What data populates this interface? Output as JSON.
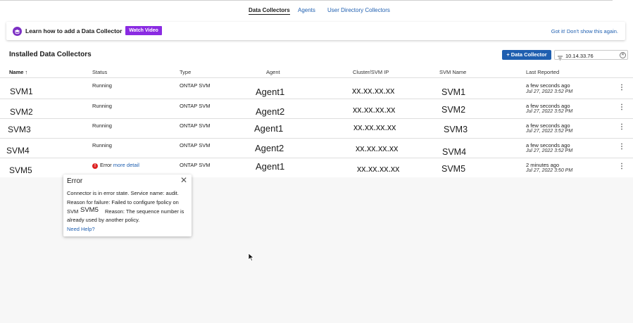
{
  "tabs": [
    "Data Collectors",
    "Agents",
    "User Directory Collectors"
  ],
  "banner": {
    "text": "Learn how to add a Data Collector",
    "watch_label": "Watch Video",
    "dismiss_label": "Got it! Don't show this again."
  },
  "section": {
    "title": "Installed Data Collectors",
    "add_label": "+ Data Collector",
    "filter_value": "10.14.33.76"
  },
  "columns": {
    "name": "Name",
    "sort_indicator": "↑",
    "status": "Status",
    "type": "Type",
    "agent": "Agent",
    "ip": "Cluster/SVM IP",
    "svm": "SVM Name",
    "reported": "Last Reported"
  },
  "rows": [
    {
      "name": "SVM1",
      "status": "Running",
      "type": "ONTAP SVM",
      "agent": "Agent1",
      "ip": "xx.xx.xx.xx",
      "svm": "SVM1",
      "reported": "a few seconds ago",
      "reported_date": "Jul 27, 2022 3:52 PM"
    },
    {
      "name": "SVM2",
      "status": "Running",
      "type": "ONTAP SVM",
      "agent": "Agent2",
      "ip": "xx.xx.xx.xx",
      "svm": "SVM2",
      "reported": "a few seconds ago",
      "reported_date": "Jul 27, 2022 3:52 PM"
    },
    {
      "name": "SVM3",
      "status": "Running",
      "type": "ONTAP SVM",
      "agent": "Agent1",
      "ip": "xx.xx.xx.xx",
      "svm": "SVM3",
      "reported": "a few seconds ago",
      "reported_date": "Jul 27, 2022 3:52 PM"
    },
    {
      "name": "SVM4",
      "status": "Running",
      "type": "ONTAP SVM",
      "agent": "Agent2",
      "ip": "xx.xx.xx.xx",
      "svm": "SVM4",
      "reported": "a few seconds ago",
      "reported_date": "Jul 27, 2022 3:52 PM"
    },
    {
      "name": "SVM5",
      "status": "Error",
      "status_link": "more detail",
      "type": "ONTAP SVM",
      "agent": "Agent1",
      "ip": "xx.xx.xx.xx",
      "svm": "SVM5",
      "reported": "2 minutes ago",
      "reported_date": "Jul 27, 2022 3:50 PM"
    }
  ],
  "popover": {
    "title": "Error",
    "line1": "Connector is in error state. Service name: audit.",
    "line2": "Reason for failure: Failed to configure fpolicy on",
    "line3a": "SVM",
    "line3_svm": "SVM5",
    "line3b": "Reason: The sequence number is",
    "line4": "already used by another policy.",
    "help_label": "Need Help?"
  },
  "colors": {
    "accent": "#1f5fb0",
    "brand_purple": "#8a2be2",
    "error": "#d22222"
  }
}
